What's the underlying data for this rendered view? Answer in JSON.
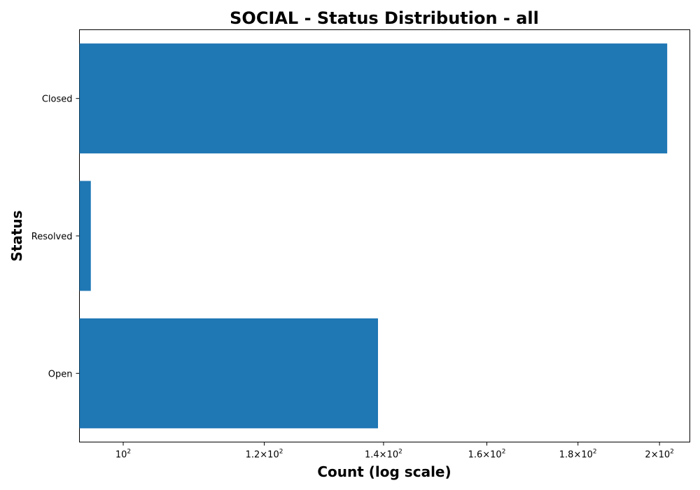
{
  "chart_data": {
    "type": "bar",
    "orientation": "horizontal",
    "title": "SOCIAL - Status Distribution - all",
    "xlabel": "Count (log scale)",
    "ylabel": "Status",
    "x_scale": "log",
    "xlim": [
      94.5,
      208
    ],
    "categories": [
      "Closed",
      "Resolved",
      "Open"
    ],
    "values": [
      202,
      95.9,
      139
    ],
    "x_ticks": [
      {
        "value": 100,
        "label": "10^2"
      },
      {
        "value": 120,
        "label": "1.2×10^2"
      },
      {
        "value": 140,
        "label": "1.4×10^2"
      },
      {
        "value": 160,
        "label": "1.6×10^2"
      },
      {
        "value": 180,
        "label": "1.8×10^2"
      },
      {
        "value": 200,
        "label": "2×10^2"
      }
    ],
    "bar_color": "#1f77b4",
    "grid": false,
    "legend": "none"
  }
}
